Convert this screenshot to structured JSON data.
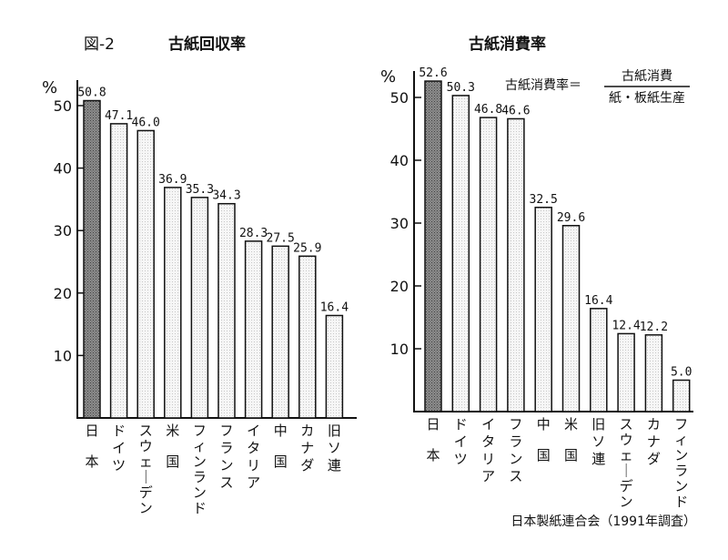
{
  "figure_label": "図-2",
  "source": "日本製紙連合会（1991年調査）",
  "colors": {
    "highlight_bar": "#8c8c8c",
    "normal_bar": "#f4f4f4",
    "ink": "#111111"
  },
  "chart_data": [
    {
      "type": "bar",
      "title": "古紙回収率",
      "unit": "%",
      "categories": [
        "日本",
        "ドイツ",
        "スウェーデン",
        "米国",
        "フィンランド",
        "フランス",
        "イタリア",
        "中国",
        "カナダ",
        "旧ソ連"
      ],
      "values": [
        50.8,
        47.1,
        46.0,
        36.9,
        35.3,
        34.3,
        28.3,
        27.5,
        25.9,
        16.4
      ],
      "value_labels": [
        "50.8",
        "47.1",
        "46.0",
        "36.9",
        "35.3",
        "34.3",
        "28.3",
        "27.5",
        "25.9",
        "16.4"
      ],
      "yticks": [
        "10",
        "20",
        "30",
        "40",
        "50"
      ],
      "ylim": [
        0,
        55
      ],
      "highlight_index": 0
    },
    {
      "type": "bar",
      "title": "古紙消費率",
      "unit": "%",
      "formula": {
        "lhs": "古紙消費率＝",
        "numerator": "古紙消費",
        "denominator": "紙・板紙生産"
      },
      "categories": [
        "日本",
        "ドイツ",
        "イタリア",
        "フランス",
        "中国",
        "米国",
        "旧ソ連",
        "スウェーデン",
        "カナダ",
        "フィンランド"
      ],
      "values": [
        52.6,
        50.3,
        46.8,
        46.6,
        32.5,
        29.6,
        16.4,
        12.4,
        12.2,
        5.0
      ],
      "value_labels": [
        "52.6",
        "50.3",
        "46.8",
        "46.6",
        "32.5",
        "29.6",
        "16.4",
        "12.4",
        "12.2",
        "5.0"
      ],
      "yticks": [
        "10",
        "20",
        "30",
        "40",
        "50"
      ],
      "ylim": [
        0,
        55
      ],
      "highlight_index": 0
    }
  ]
}
